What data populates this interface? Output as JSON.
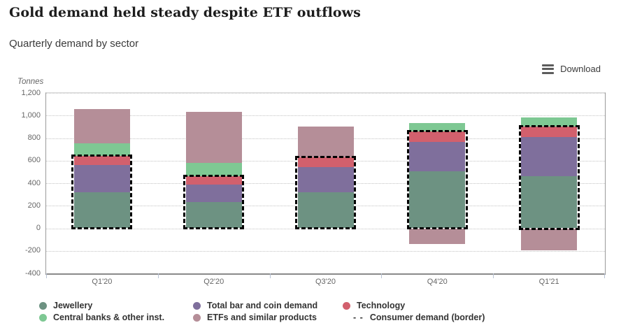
{
  "header": {
    "title": "Gold demand held steady despite ETF outflows",
    "subtitle": "Quarterly demand by sector",
    "download_label": "Download"
  },
  "chart_data": {
    "type": "bar",
    "stacked": true,
    "title": "Gold demand held steady despite ETF outflows",
    "subtitle": "Quarterly demand by sector",
    "unit_label": "Tonnes",
    "categories": [
      "Q1'20",
      "Q2'20",
      "Q3'20",
      "Q4'20",
      "Q1'21"
    ],
    "series": [
      {
        "name": "Jewellery",
        "color": "#6d9282",
        "values": [
          320,
          235,
          320,
          505,
          465
        ]
      },
      {
        "name": "Total bar and coin demand",
        "color": "#7f6f9c",
        "values": [
          240,
          155,
          220,
          260,
          345
        ]
      },
      {
        "name": "Technology",
        "color": "#d2606d",
        "values": [
          80,
          70,
          90,
          95,
          90
        ]
      },
      {
        "name": "Central banks & other inst.",
        "color": "#7ec893",
        "values": [
          115,
          120,
          0,
          75,
          85
        ]
      },
      {
        "name": "ETFs and similar products",
        "color": "#b58e98",
        "values": [
          305,
          450,
          270,
          -140,
          -195
        ]
      }
    ],
    "consumer_border": {
      "name": "Consumer demand (border)",
      "legend_prefix": "- - ",
      "border_color": "#000000",
      "values": [
        640,
        460,
        630,
        860,
        900
      ]
    },
    "ylim": [
      -400,
      1200
    ],
    "yticks": [
      1200,
      1000,
      800,
      600,
      400,
      200,
      0,
      -200,
      -400
    ],
    "grid": "dotted-horizontal",
    "legend_position": "bottom",
    "colors": {
      "axis_line": "#9a9a9a",
      "grid_line": "#c3c3c3",
      "tick_mark": "#b9c3d4",
      "axis_text": "#666666"
    }
  }
}
